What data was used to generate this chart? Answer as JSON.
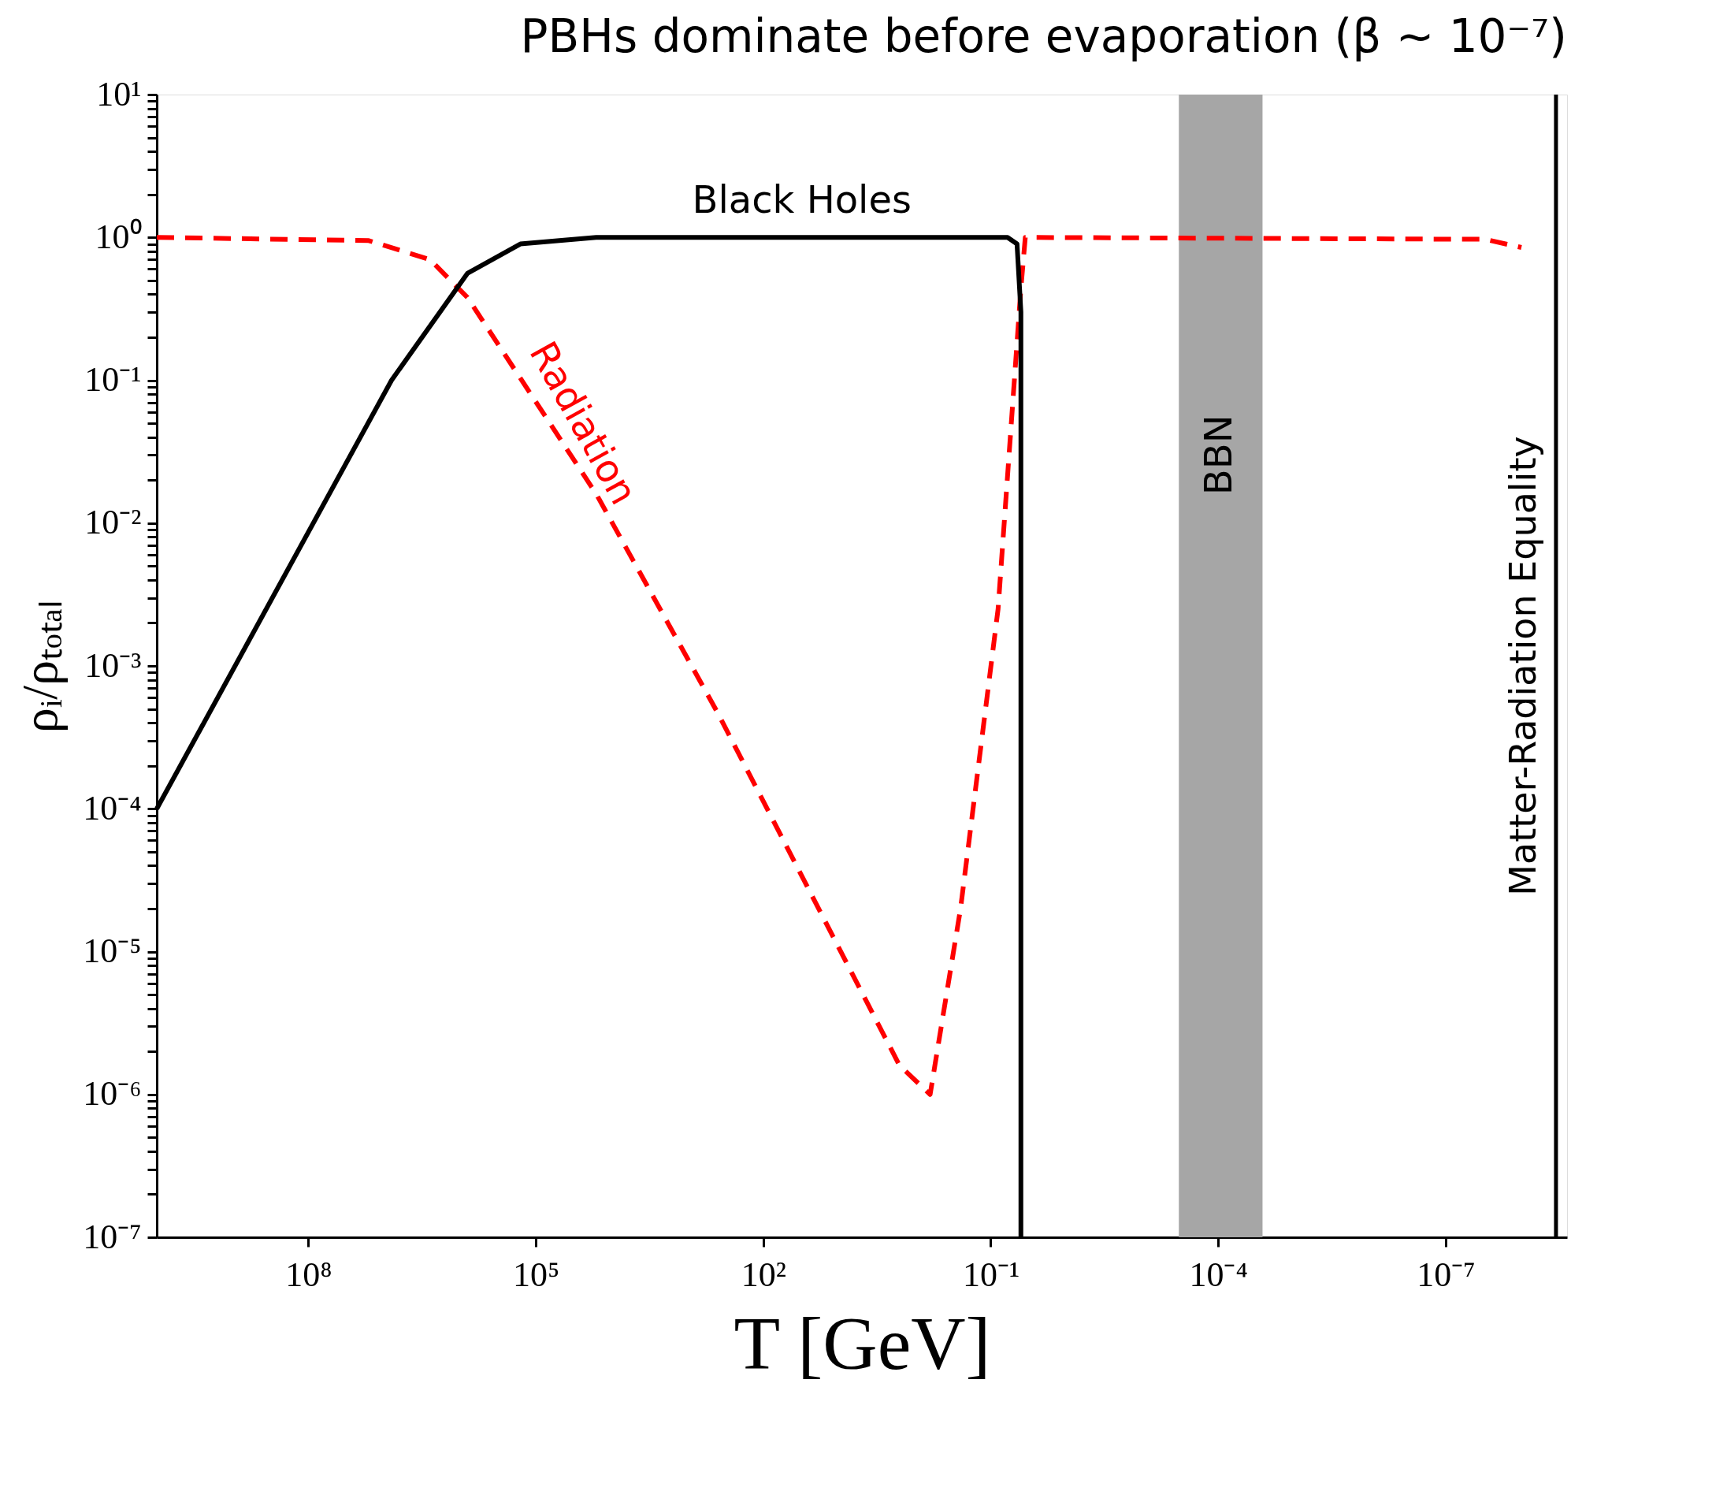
{
  "chart_data": {
    "type": "line",
    "title": "PBHs dominate before evaporation (β ∼ 10⁻⁷)",
    "xlabel": "T [GeV]",
    "ylabel": "ρᵢ/ρₜₒₜₐₗ",
    "log": "xy",
    "grid": false,
    "marker": "none",
    "xlim": [
      10000000000.0,
      2.5e-09
    ],
    "ylim": [
      1e-07,
      10
    ],
    "xticks": [
      {
        "value": 100000000.0,
        "label": "10⁸"
      },
      {
        "value": 100000.0,
        "label": "10⁵"
      },
      {
        "value": 100,
        "label": "10²"
      },
      {
        "value": 0.1,
        "label": "10⁻¹"
      },
      {
        "value": 0.0001,
        "label": "10⁻⁴"
      },
      {
        "value": 1e-07,
        "label": "10⁻⁷"
      }
    ],
    "yticks": [
      {
        "value": 1e-07,
        "label": "10⁻⁷"
      },
      {
        "value": 1e-06,
        "label": "10⁻⁶"
      },
      {
        "value": 1e-05,
        "label": "10⁻⁵"
      },
      {
        "value": 0.0001,
        "label": "10⁻⁴"
      },
      {
        "value": 0.001,
        "label": "10⁻³"
      },
      {
        "value": 0.01,
        "label": "10⁻²"
      },
      {
        "value": 0.1,
        "label": "10⁻¹"
      },
      {
        "value": 1,
        "label": "10⁰"
      },
      {
        "value": 10,
        "label": "10¹"
      },
      {
        "value": 2e-07,
        "label": null
      },
      {
        "value": 3e-07,
        "label": null
      },
      {
        "value": 4e-07,
        "label": null
      },
      {
        "value": 5e-07,
        "label": null
      },
      {
        "value": 6e-07,
        "label": null
      },
      {
        "value": 7e-07,
        "label": null
      },
      {
        "value": 8e-07,
        "label": null
      },
      {
        "value": 9e-07,
        "label": null
      },
      {
        "value": 2e-06,
        "label": null
      },
      {
        "value": 3e-06,
        "label": null
      },
      {
        "value": 4e-06,
        "label": null
      },
      {
        "value": 5e-06,
        "label": null
      },
      {
        "value": 6e-06,
        "label": null
      },
      {
        "value": 7e-06,
        "label": null
      },
      {
        "value": 8e-06,
        "label": null
      },
      {
        "value": 9e-06,
        "label": null
      },
      {
        "value": 2e-05,
        "label": null
      },
      {
        "value": 3e-05,
        "label": null
      },
      {
        "value": 4e-05,
        "label": null
      },
      {
        "value": 5e-05,
        "label": null
      },
      {
        "value": 6e-05,
        "label": null
      },
      {
        "value": 7e-05,
        "label": null
      },
      {
        "value": 8e-05,
        "label": null
      },
      {
        "value": 9e-05,
        "label": null
      },
      {
        "value": 0.0002,
        "label": null
      },
      {
        "value": 0.0003,
        "label": null
      },
      {
        "value": 0.0004,
        "label": null
      },
      {
        "value": 0.0005,
        "label": null
      },
      {
        "value": 0.0006,
        "label": null
      },
      {
        "value": 0.0007,
        "label": null
      },
      {
        "value": 0.0008,
        "label": null
      },
      {
        "value": 0.0009,
        "label": null
      },
      {
        "value": 0.002,
        "label": null
      },
      {
        "value": 0.003,
        "label": null
      },
      {
        "value": 0.004,
        "label": null
      },
      {
        "value": 0.005,
        "label": null
      },
      {
        "value": 0.006,
        "label": null
      },
      {
        "value": 0.007,
        "label": null
      },
      {
        "value": 0.008,
        "label": null
      },
      {
        "value": 0.009,
        "label": null
      },
      {
        "value": 0.02,
        "label": null
      },
      {
        "value": 0.03,
        "label": null
      },
      {
        "value": 0.04,
        "label": null
      },
      {
        "value": 0.05,
        "label": null
      },
      {
        "value": 0.06,
        "label": null
      },
      {
        "value": 0.07,
        "label": null
      },
      {
        "value": 0.08,
        "label": null
      },
      {
        "value": 0.09,
        "label": null
      },
      {
        "value": 0.2,
        "label": null
      },
      {
        "value": 0.3,
        "label": null
      },
      {
        "value": 0.4,
        "label": null
      },
      {
        "value": 0.5,
        "label": null
      },
      {
        "value": 0.6,
        "label": null
      },
      {
        "value": 0.7,
        "label": null
      },
      {
        "value": 0.8,
        "label": null
      },
      {
        "value": 0.9,
        "label": null
      },
      {
        "value": 2,
        "label": null
      },
      {
        "value": 3,
        "label": null
      },
      {
        "value": 4,
        "label": null
      },
      {
        "value": 5,
        "label": null
      },
      {
        "value": 6,
        "label": null
      },
      {
        "value": 7,
        "label": null
      },
      {
        "value": 8,
        "label": null
      },
      {
        "value": 9,
        "label": null
      }
    ],
    "series": [
      {
        "name": "Radiation",
        "color": "#ff0000",
        "line_style": "dashed",
        "x": [
          10000000000.0,
          16000000.0,
          2500000.0,
          800000.0,
          16000.0,
          400,
          1.6,
          0.63,
          0.25,
          0.08,
          0.04,
          0.035,
          3e-08,
          1e-08
        ],
        "values": [
          1,
          0.95,
          0.7,
          0.38,
          0.016,
          0.00047,
          1.6e-06,
          1e-06,
          2e-05,
          0.0025,
          0.44,
          1,
          0.97,
          0.85
        ]
      },
      {
        "name": "Black Holes",
        "color": "#000000",
        "line_style": "solid",
        "x": [
          10000000000.0,
          8000000.0,
          800000.0,
          160000.0,
          16000.0,
          0.06,
          0.045,
          0.04,
          0.04
        ],
        "values": [
          0.0001,
          0.1,
          0.56,
          0.9,
          1,
          1,
          0.9,
          0.3,
          1e-07
        ]
      }
    ],
    "bands": [
      {
        "axis": "x",
        "from": 0.00033,
        "to": 2.6e-05,
        "label": "BBN",
        "color": "#a6a6a6"
      }
    ],
    "ref_lines": [
      {
        "axis": "x",
        "value": 3.5e-09,
        "label": "Matter-Radiation Equality",
        "color": "#000000",
        "line_style": "solid"
      }
    ]
  }
}
